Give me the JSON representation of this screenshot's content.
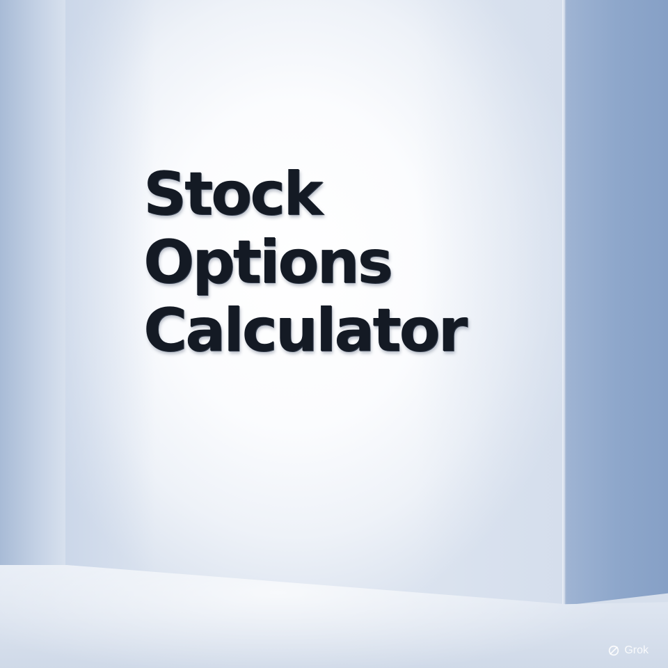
{
  "sign": {
    "lines": [
      "Stock",
      "Options",
      "Calculator"
    ]
  },
  "watermark": {
    "label": "Grok",
    "icon": "grok-logo-icon"
  },
  "colors": {
    "text": "#141a24",
    "wall": "#ffffff",
    "side_wall": "#8ea7cb"
  }
}
